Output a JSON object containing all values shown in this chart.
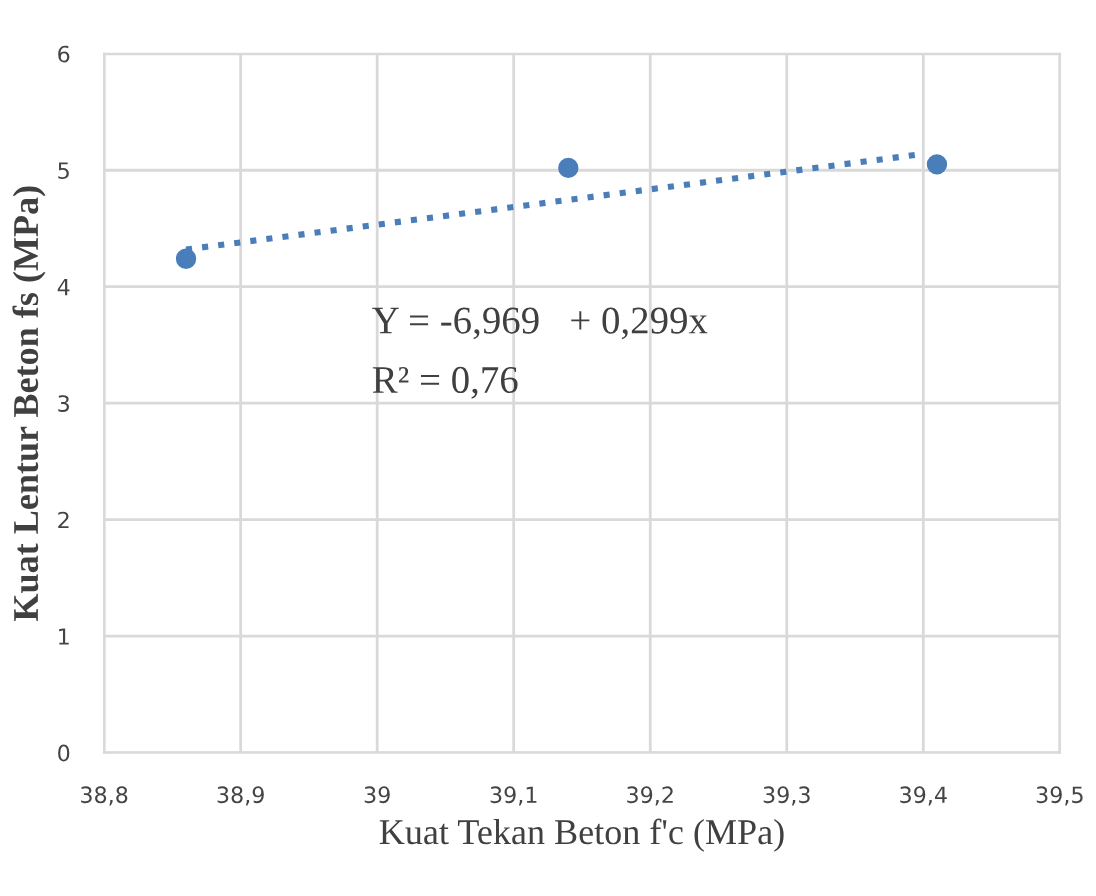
{
  "chart_data": {
    "type": "scatter",
    "xlabel": "Kuat Tekan Beton f'c (MPa)",
    "ylabel": "Kuat Lentur Beton fs (MPa)",
    "series": [
      {
        "color": "#4a7ebb",
        "x": [
          38.86,
          39.14,
          39.41
        ],
        "values": [
          4.24,
          5.02,
          5.05
        ],
        "marker": "circle"
      },
      {
        "type": "line",
        "color": "#4a7ebb",
        "x": [
          38.86,
          39.4
        ],
        "values": [
          4.32,
          5.14
        ],
        "line_style": "dotted",
        "marker": "none"
      }
    ],
    "annotations": [
      "Y = -6,969   + 0,299x",
      "R² = 0,76"
    ],
    "xlim": [
      38.8,
      39.5
    ],
    "xticks": [
      {
        "value": 38.8,
        "label": "38,8"
      },
      {
        "value": 38.9,
        "label": "38,9"
      },
      39,
      {
        "value": 39.1,
        "label": "39,1"
      },
      {
        "value": 39.2,
        "label": "39,2"
      },
      {
        "value": 39.3,
        "label": "39,3"
      },
      {
        "value": 39.4,
        "label": "39,4"
      },
      {
        "value": 39.5,
        "label": "39,5"
      }
    ],
    "ylim": [
      0,
      6
    ],
    "yticks": [
      0,
      1,
      2,
      3,
      4,
      5,
      6
    ],
    "grid": true
  }
}
